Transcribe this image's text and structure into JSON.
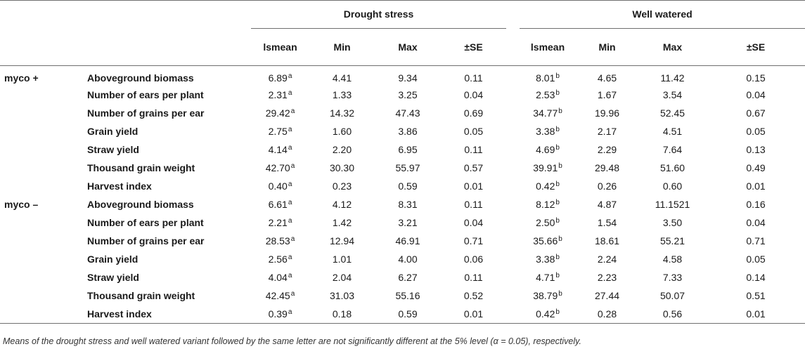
{
  "header": {
    "group1": "Drought stress",
    "group2": "Well watered",
    "columns": [
      "lsmean",
      "Min",
      "Max",
      "±SE",
      "lsmean",
      "Min",
      "Max",
      "±SE"
    ]
  },
  "groups": [
    {
      "label": "myco +",
      "rows": [
        {
          "trait": "Aboveground biomass",
          "ds": {
            "mean": "6.89",
            "sig": "a",
            "min": "4.41",
            "max": "9.34",
            "se": "0.11"
          },
          "ww": {
            "mean": "8.01",
            "sig": "b",
            "min": "4.65",
            "max": "11.42",
            "se": "0.15"
          }
        },
        {
          "trait": "Number of ears per plant",
          "ds": {
            "mean": "2.31",
            "sig": "a",
            "min": "1.33",
            "max": "3.25",
            "se": "0.04"
          },
          "ww": {
            "mean": "2.53",
            "sig": "b",
            "min": "1.67",
            "max": "3.54",
            "se": "0.04"
          }
        },
        {
          "trait": "Number of grains per ear",
          "ds": {
            "mean": "29.42",
            "sig": "a",
            "min": "14.32",
            "max": "47.43",
            "se": "0.69"
          },
          "ww": {
            "mean": "34.77",
            "sig": "b",
            "min": "19.96",
            "max": "52.45",
            "se": "0.67"
          }
        },
        {
          "trait": "Grain yield",
          "ds": {
            "mean": "2.75",
            "sig": "a",
            "min": "1.60",
            "max": "3.86",
            "se": "0.05"
          },
          "ww": {
            "mean": "3.38",
            "sig": "b",
            "min": "2.17",
            "max": "4.51",
            "se": "0.05"
          }
        },
        {
          "trait": "Straw yield",
          "ds": {
            "mean": "4.14",
            "sig": "a",
            "min": "2.20",
            "max": "6.95",
            "se": "0.11"
          },
          "ww": {
            "mean": "4.69",
            "sig": "b",
            "min": "2.29",
            "max": "7.64",
            "se": "0.13"
          }
        },
        {
          "trait": "Thousand grain weight",
          "ds": {
            "mean": "42.70",
            "sig": "a",
            "min": "30.30",
            "max": "55.97",
            "se": "0.57"
          },
          "ww": {
            "mean": "39.91",
            "sig": "b",
            "min": "29.48",
            "max": "51.60",
            "se": "0.49"
          }
        },
        {
          "trait": "Harvest index",
          "ds": {
            "mean": "0.40",
            "sig": "a",
            "min": "0.23",
            "max": "0.59",
            "se": "0.01"
          },
          "ww": {
            "mean": "0.42",
            "sig": "b",
            "min": "0.26",
            "max": "0.60",
            "se": "0.01"
          }
        }
      ]
    },
    {
      "label": "myco –",
      "rows": [
        {
          "trait": "Aboveground biomass",
          "ds": {
            "mean": "6.61",
            "sig": "a",
            "min": "4.12",
            "max": "8.31",
            "se": "0.11"
          },
          "ww": {
            "mean": "8.12",
            "sig": "b",
            "min": "4.87",
            "max": "11.1521",
            "se": "0.16"
          }
        },
        {
          "trait": "Number of ears per plant",
          "ds": {
            "mean": "2.21",
            "sig": "a",
            "min": "1.42",
            "max": "3.21",
            "se": "0.04"
          },
          "ww": {
            "mean": "2.50",
            "sig": "b",
            "min": "1.54",
            "max": "3.50",
            "se": "0.04"
          }
        },
        {
          "trait": "Number of grains per ear",
          "ds": {
            "mean": "28.53",
            "sig": "a",
            "min": "12.94",
            "max": "46.91",
            "se": "0.71"
          },
          "ww": {
            "mean": "35.66",
            "sig": "b",
            "min": "18.61",
            "max": "55.21",
            "se": "0.71"
          }
        },
        {
          "trait": "Grain yield",
          "ds": {
            "mean": "2.56",
            "sig": "a",
            "min": "1.01",
            "max": "4.00",
            "se": "0.06"
          },
          "ww": {
            "mean": "3.38",
            "sig": "b",
            "min": "2.24",
            "max": "4.58",
            "se": "0.05"
          }
        },
        {
          "trait": "Straw yield",
          "ds": {
            "mean": "4.04",
            "sig": "a",
            "min": "2.04",
            "max": "6.27",
            "se": "0.11"
          },
          "ww": {
            "mean": "4.71",
            "sig": "b",
            "min": "2.23",
            "max": "7.33",
            "se": "0.14"
          }
        },
        {
          "trait": "Thousand grain weight",
          "ds": {
            "mean": "42.45",
            "sig": "a",
            "min": "31.03",
            "max": "55.16",
            "se": "0.52"
          },
          "ww": {
            "mean": "38.79",
            "sig": "b",
            "min": "27.44",
            "max": "50.07",
            "se": "0.51"
          }
        },
        {
          "trait": "Harvest index",
          "ds": {
            "mean": "0.39",
            "sig": "a",
            "min": "0.18",
            "max": "0.59",
            "se": "0.01"
          },
          "ww": {
            "mean": "0.42",
            "sig": "b",
            "min": "0.28",
            "max": "0.56",
            "se": "0.01"
          }
        }
      ]
    }
  ],
  "footnote": "Means of the drought stress and well watered variant followed by the same letter are not significantly different at the 5% level (α = 0.05), respectively."
}
